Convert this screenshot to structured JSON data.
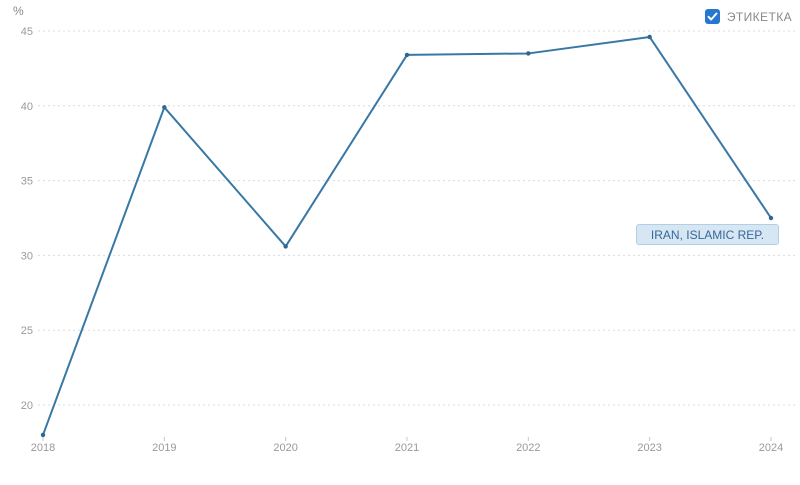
{
  "unit_label": "%",
  "legend": {
    "label": "ЭТИКЕТКА",
    "checked": true
  },
  "series_label": "IRAN, ISLAMIC REP.",
  "colors": {
    "line": "#3878a5",
    "marker": "#2d6690",
    "grid": "#dbdbdb",
    "tick_text": "#9a9a9a",
    "tick_mark": "#c8c8c8",
    "checkbox_blue": "#2577d0",
    "tooltip_bg": "#d7e6f3",
    "tooltip_border": "#b3cfe5",
    "tooltip_text": "#36689b"
  },
  "chart_data": {
    "type": "line",
    "title": "",
    "x": [
      2018,
      2019,
      2020,
      2021,
      2022,
      2023,
      2024
    ],
    "series": [
      {
        "name": "IRAN, ISLAMIC REP.",
        "values": [
          18.0,
          39.9,
          30.6,
          43.4,
          43.5,
          44.6,
          32.5
        ]
      }
    ],
    "xlabel": "",
    "ylabel": "%",
    "yticks": [
      20,
      25,
      30,
      35,
      40,
      45
    ],
    "ylim": [
      17.5,
      46
    ],
    "grid": "horizontal-dashed",
    "legend_position": "top-right"
  }
}
